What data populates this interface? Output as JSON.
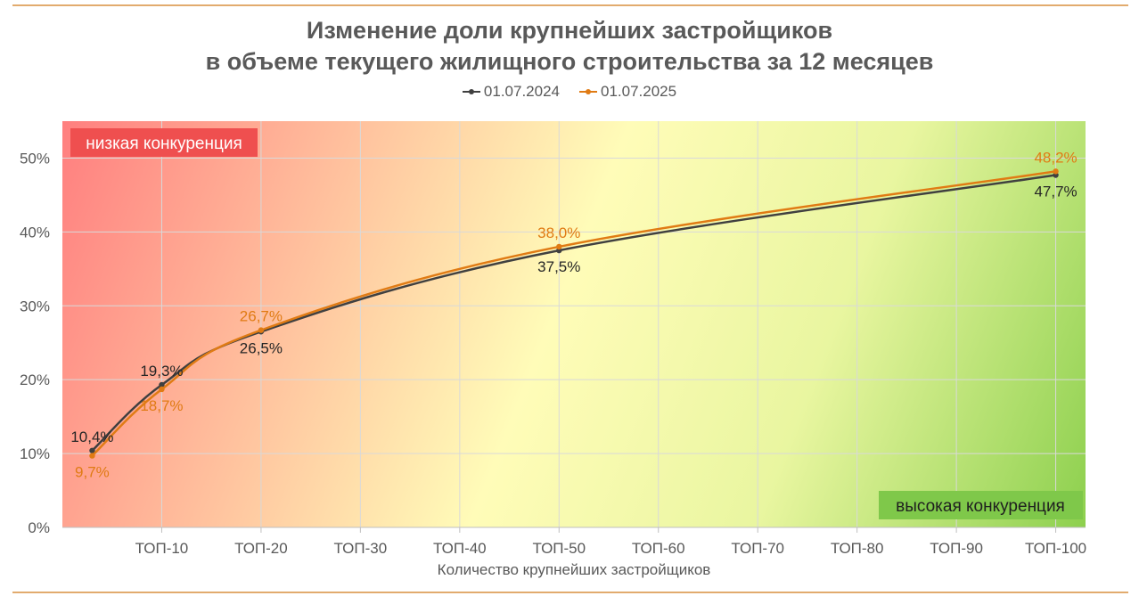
{
  "chart_data": {
    "type": "line",
    "title": [
      "Изменение доли крупнейших застройщиков",
      "в объеме текущего жилищного строительства за 12 месяцев"
    ],
    "xlabel": "Количество крупнейших застройщиков",
    "ylabel": "",
    "categories": [
      "ТОП-10",
      "ТОП-20",
      "ТОП-30",
      "ТОП-40",
      "ТОП-50",
      "ТОП-60",
      "ТОП-70",
      "ТОП-80",
      "ТОП-90",
      "ТОП-100"
    ],
    "x_ticks": [
      10,
      20,
      30,
      40,
      50,
      60,
      70,
      80,
      90,
      100
    ],
    "xlim": [
      0,
      103
    ],
    "ylim": [
      0,
      55
    ],
    "y_ticks": [
      0,
      10,
      20,
      30,
      40,
      50
    ],
    "y_tick_labels": [
      "0%",
      "10%",
      "20%",
      "30%",
      "40%",
      "50%"
    ],
    "grid": true,
    "legend_position": "top-center",
    "series": [
      {
        "name": "01.07.2024",
        "color": "#404040",
        "x": [
          3,
          10,
          20,
          50,
          100
        ],
        "values": [
          10.4,
          19.3,
          26.5,
          37.5,
          47.7
        ],
        "labels": [
          "10,4%",
          "19,3%",
          "26,5%",
          "37,5%",
          "47,7%"
        ],
        "label_positions": [
          "above",
          "above",
          "below",
          "below",
          "below"
        ]
      },
      {
        "name": "01.07.2025",
        "color": "#e07b14",
        "x": [
          3,
          10,
          20,
          50,
          100
        ],
        "values": [
          9.7,
          18.7,
          26.7,
          38.0,
          48.2
        ],
        "labels": [
          "9,7%",
          "18,7%",
          "26,7%",
          "38,0%",
          "48,2%"
        ],
        "label_positions": [
          "below",
          "below",
          "above",
          "above",
          "above"
        ]
      }
    ],
    "annotations": {
      "low": "низкая конкуренция",
      "high": "высокая конкуренция"
    }
  }
}
